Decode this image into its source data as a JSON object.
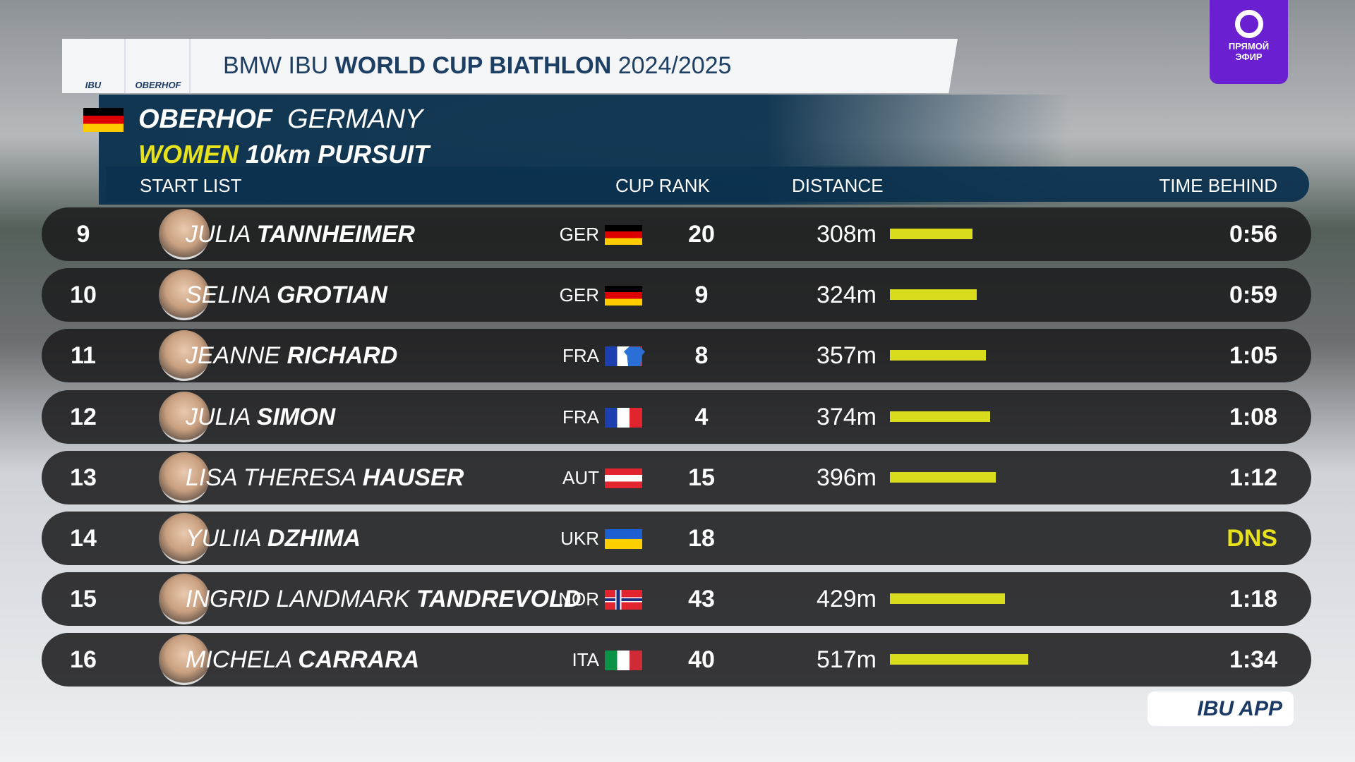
{
  "header": {
    "logos": [
      "IBU",
      "OBERHOF"
    ],
    "title_prefix": "BMW IBU",
    "title_bold": "WORLD CUP BIATHLON",
    "title_season": "2024/2025"
  },
  "event": {
    "venue": "OBERHOF",
    "country": "GERMANY",
    "gender": "WOMEN",
    "race": "10km  PURSUIT"
  },
  "columns": {
    "list": "START  LIST",
    "cup_rank": "CUP  RANK",
    "distance": "DISTANCE",
    "time": "TIME  BEHIND"
  },
  "rows": [
    {
      "bib": "9",
      "first_name": "JULIA",
      "last_name": "TANNHEIMER",
      "nation": "GER",
      "cup_rank": "20",
      "distance": {
        "value": 308,
        "label": "308m"
      },
      "time": "0:56"
    },
    {
      "bib": "10",
      "first_name": "SELINA",
      "last_name": "GROTIAN",
      "nation": "GER",
      "cup_rank": "9",
      "distance": {
        "value": 324,
        "label": "324m"
      },
      "time": "0:59"
    },
    {
      "bib": "11",
      "first_name": "JEANNE",
      "last_name": "RICHARD",
      "nation": "FRA",
      "cup_rank": "8",
      "jersey": "blue",
      "distance": {
        "value": 357,
        "label": "357m"
      },
      "time": "1:05"
    },
    {
      "bib": "12",
      "first_name": "JULIA",
      "last_name": "SIMON",
      "nation": "FRA",
      "cup_rank": "4",
      "distance": {
        "value": 374,
        "label": "374m"
      },
      "time": "1:08"
    },
    {
      "bib": "13",
      "first_name": "LISA  THERESA",
      "last_name": "HAUSER",
      "nation": "AUT",
      "cup_rank": "15",
      "distance": {
        "value": 396,
        "label": "396m"
      },
      "time": "1:12"
    },
    {
      "bib": "14",
      "first_name": "YULIIA",
      "last_name": "DZHIMA",
      "nation": "UKR",
      "cup_rank": "18",
      "distance": null,
      "time": "DNS"
    },
    {
      "bib": "15",
      "first_name": "INGRID  LANDMARK",
      "last_name": "TANDREVOLD",
      "nation": "NOR",
      "cup_rank": "43",
      "distance": {
        "value": 429,
        "label": "429m"
      },
      "time": "1:18"
    },
    {
      "bib": "16",
      "first_name": "MICHELA",
      "last_name": "CARRARA",
      "nation": "ITA",
      "cup_rank": "40",
      "distance": {
        "value": 517,
        "label": "517m"
      },
      "time": "1:34"
    }
  ],
  "badge": {
    "line1": "ПРЯМОЙ",
    "line2": "ЭФИР"
  },
  "app": "IBU APP"
}
